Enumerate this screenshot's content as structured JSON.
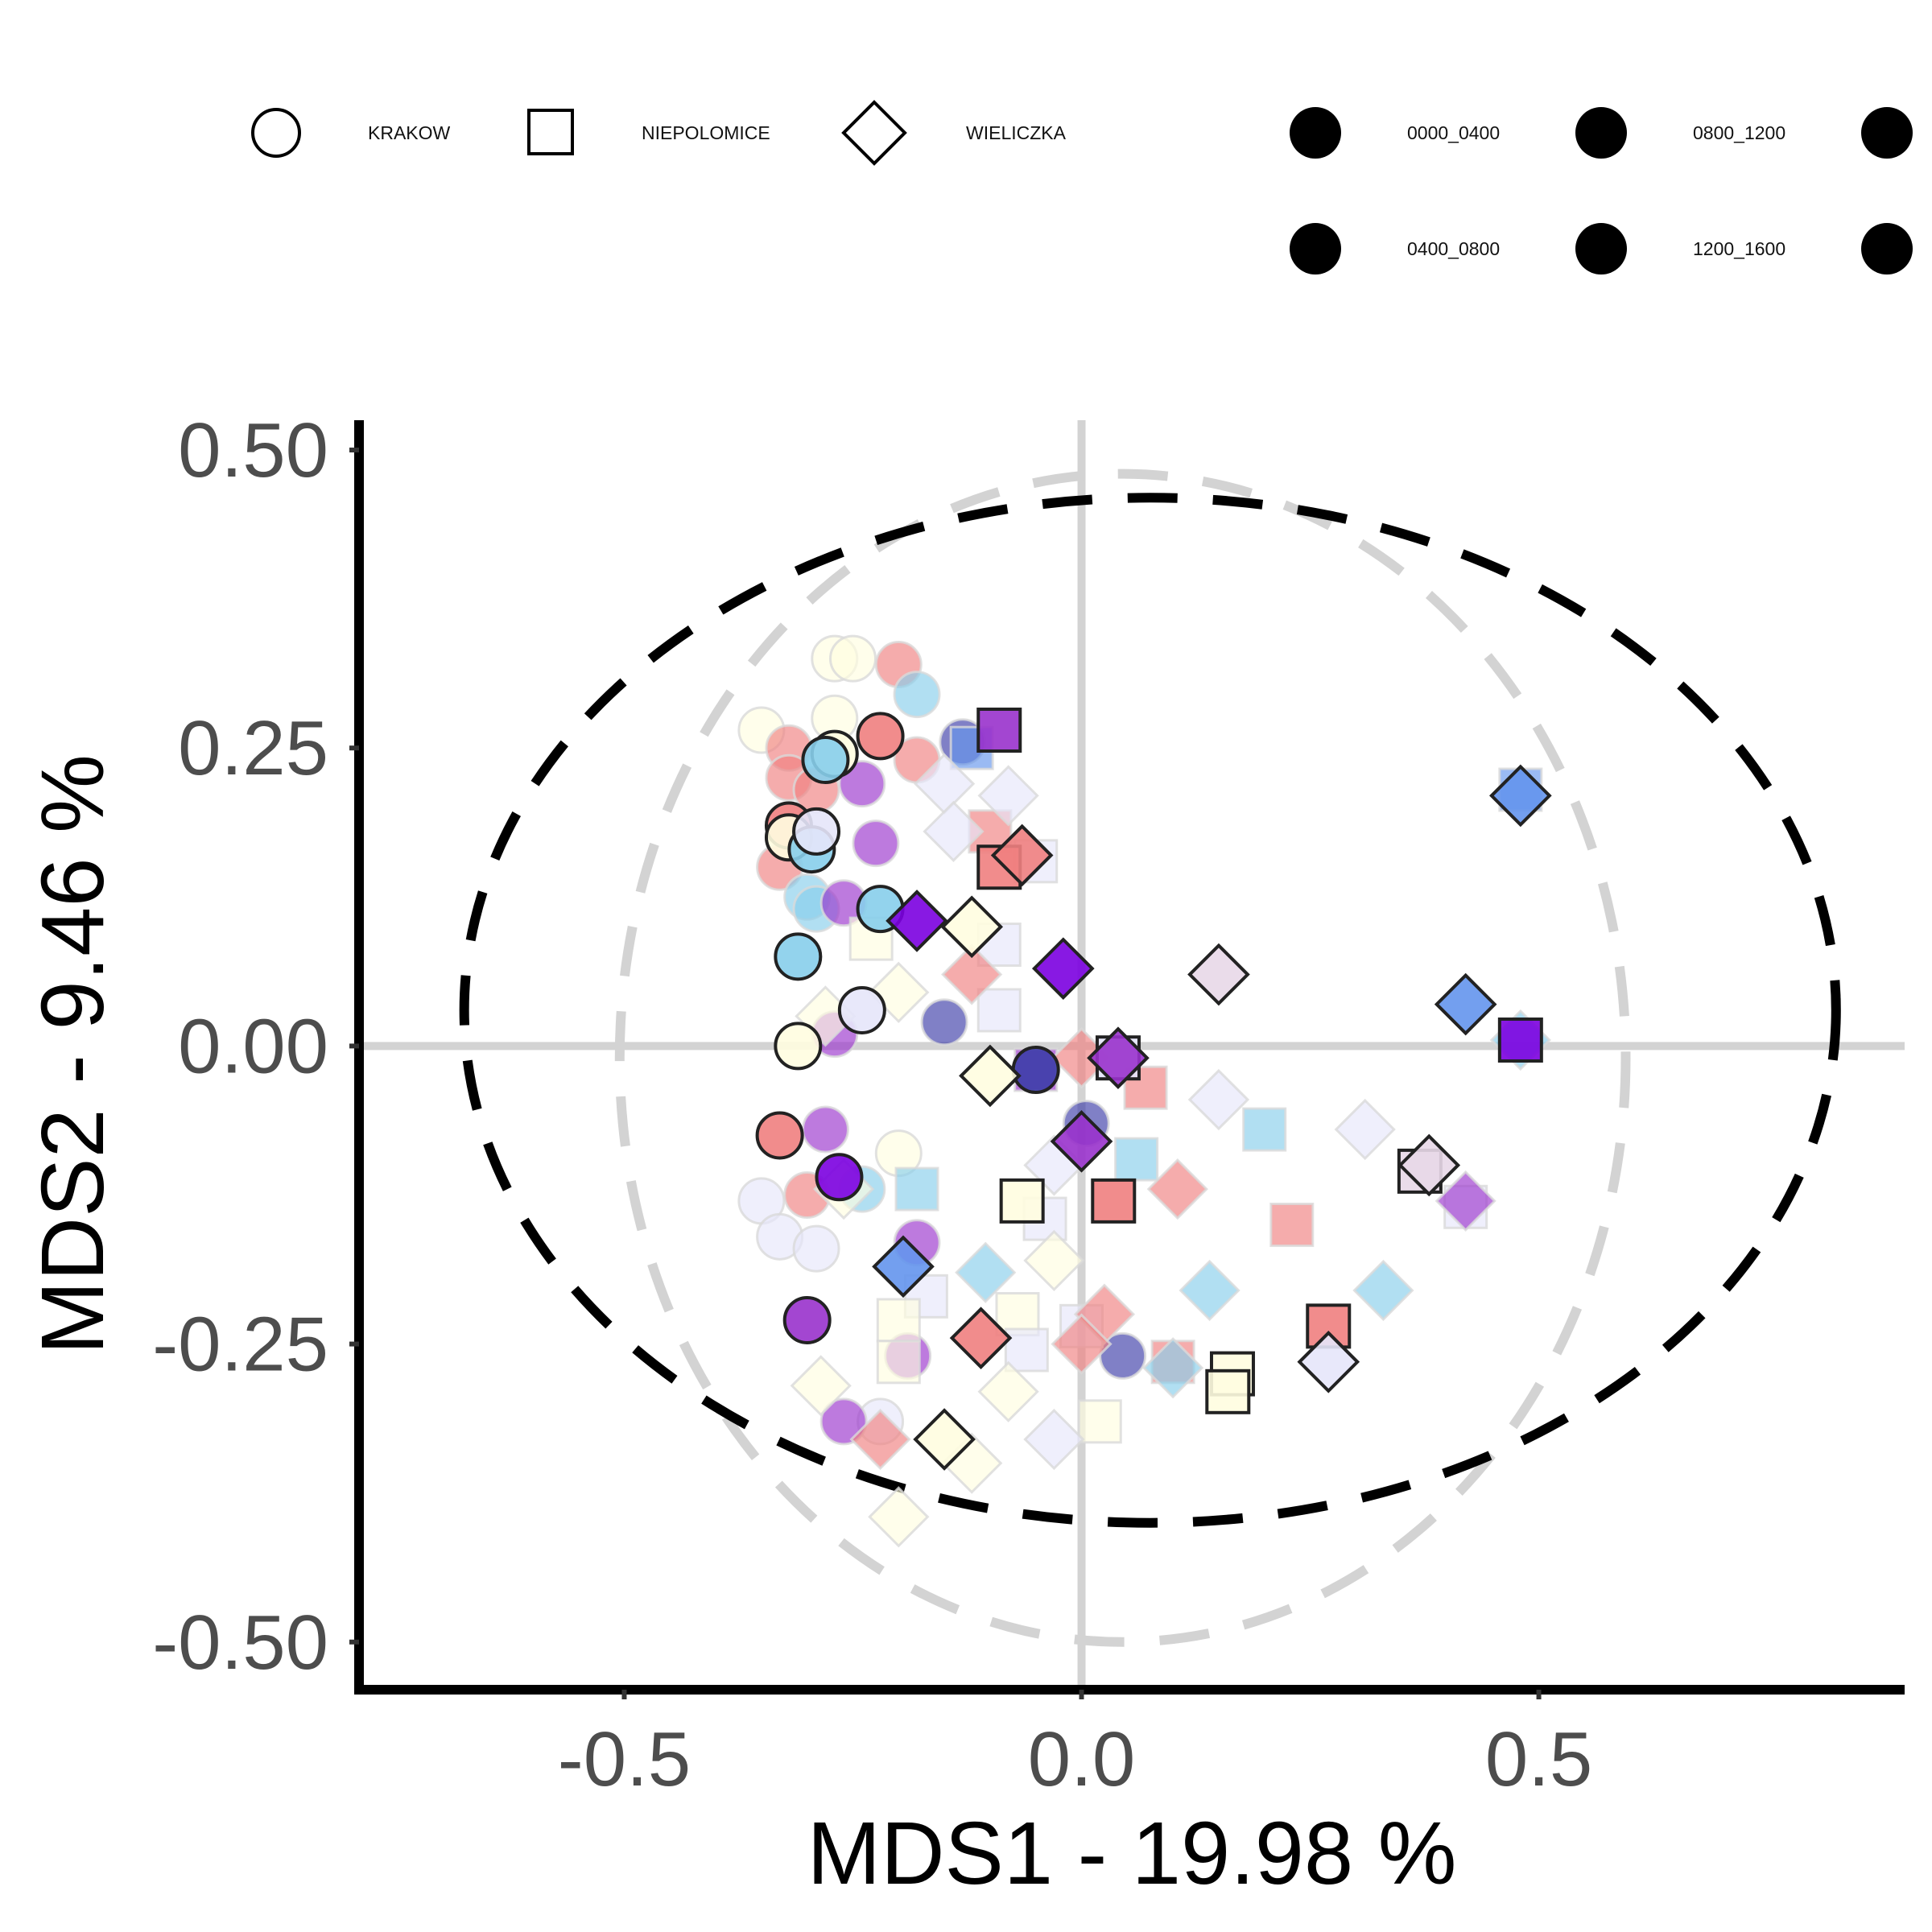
{
  "chart_data": {
    "type": "scatter",
    "xlabel": "MDS1 - 19.98 %",
    "ylabel": "MDS2 - 9.46 %",
    "xlim": [
      -0.79,
      0.9
    ],
    "ylim": [
      -0.54,
      0.525
    ],
    "x_ticks": [
      {
        "value": -0.5,
        "label": "-0.5"
      },
      {
        "value": 0.0,
        "label": "0.0"
      },
      {
        "value": 0.5,
        "label": "0.5"
      }
    ],
    "y_ticks": [
      {
        "value": 0.5,
        "label": "0.50"
      },
      {
        "value": 0.25,
        "label": "0.25"
      },
      {
        "value": 0.0,
        "label": "0.00"
      },
      {
        "value": -0.25,
        "label": "-0.25"
      },
      {
        "value": -0.5,
        "label": "-0.50"
      }
    ],
    "grid": false,
    "reference_lines": {
      "x": 0,
      "y": 0,
      "color": "#d3d3d3"
    },
    "legend_position": "top",
    "legend": {
      "shapes": [
        {
          "label": "KRAKOW",
          "shape": "circle"
        },
        {
          "label": "NIEPOLOMICE",
          "shape": "square"
        },
        {
          "label": "WIELICZKA",
          "shape": "diamond"
        }
      ],
      "times": [
        "0000_0400",
        "0800_1200",
        "",
        "0400_0800",
        "1200_1600",
        ""
      ]
    },
    "colors": {
      "salmon": "#f08080",
      "lightblue": "#87ceeb",
      "purple": "#9932cc",
      "violet": "#7b00e0",
      "navy": "#3c3ca8",
      "cornflower": "#6495ed",
      "cream": "#fffde0",
      "lavender": "#e6e6fa",
      "pinkgrey": "#e8d8e8"
    },
    "ellipses": [
      {
        "name": "",
        "style": "dashed",
        "color": "#d3d3d3",
        "center": [
          0.045,
          -0.01
        ],
        "rx": 0.55,
        "ry": 0.49
      },
      {
        "name": "",
        "style": "dashed",
        "color": "#000000",
        "center": [
          0.075,
          0.03
        ],
        "rx": 0.75,
        "ry": 0.43
      }
    ],
    "points": [
      {
        "x": -0.27,
        "y": 0.325,
        "shape": "circle",
        "color": "cream",
        "highlight": false
      },
      {
        "x": -0.25,
        "y": 0.325,
        "shape": "circle",
        "color": "cream",
        "highlight": false
      },
      {
        "x": -0.2,
        "y": 0.32,
        "shape": "circle",
        "color": "salmon",
        "highlight": false
      },
      {
        "x": -0.18,
        "y": 0.295,
        "shape": "circle",
        "color": "lightblue",
        "highlight": false
      },
      {
        "x": -0.35,
        "y": 0.265,
        "shape": "circle",
        "color": "cream",
        "highlight": false
      },
      {
        "x": -0.27,
        "y": 0.275,
        "shape": "circle",
        "color": "cream",
        "highlight": false
      },
      {
        "x": -0.32,
        "y": 0.25,
        "shape": "circle",
        "color": "salmon",
        "highlight": false
      },
      {
        "x": -0.22,
        "y": 0.26,
        "shape": "circle",
        "color": "salmon",
        "highlight": true
      },
      {
        "x": -0.27,
        "y": 0.245,
        "shape": "circle",
        "color": "cream",
        "highlight": true
      },
      {
        "x": -0.28,
        "y": 0.24,
        "shape": "circle",
        "color": "lightblue",
        "highlight": true
      },
      {
        "x": -0.32,
        "y": 0.225,
        "shape": "circle",
        "color": "salmon",
        "highlight": false
      },
      {
        "x": -0.29,
        "y": 0.215,
        "shape": "circle",
        "color": "salmon",
        "highlight": false
      },
      {
        "x": -0.24,
        "y": 0.22,
        "shape": "circle",
        "color": "purple",
        "highlight": false
      },
      {
        "x": -0.18,
        "y": 0.24,
        "shape": "circle",
        "color": "salmon",
        "highlight": false
      },
      {
        "x": -0.13,
        "y": 0.255,
        "shape": "circle",
        "color": "navy",
        "highlight": false
      },
      {
        "x": -0.32,
        "y": 0.185,
        "shape": "circle",
        "color": "salmon",
        "highlight": true
      },
      {
        "x": -0.32,
        "y": 0.175,
        "shape": "circle",
        "color": "cream",
        "highlight": true
      },
      {
        "x": -0.295,
        "y": 0.165,
        "shape": "circle",
        "color": "lightblue",
        "highlight": true
      },
      {
        "x": -0.29,
        "y": 0.18,
        "shape": "circle",
        "color": "lavender",
        "highlight": true
      },
      {
        "x": -0.225,
        "y": 0.17,
        "shape": "circle",
        "color": "purple",
        "highlight": false
      },
      {
        "x": -0.33,
        "y": 0.15,
        "shape": "circle",
        "color": "salmon",
        "highlight": false
      },
      {
        "x": -0.3,
        "y": 0.125,
        "shape": "circle",
        "color": "lightblue",
        "highlight": false
      },
      {
        "x": -0.29,
        "y": 0.115,
        "shape": "circle",
        "color": "lightblue",
        "highlight": false
      },
      {
        "x": -0.26,
        "y": 0.12,
        "shape": "circle",
        "color": "purple",
        "highlight": false
      },
      {
        "x": -0.22,
        "y": 0.115,
        "shape": "circle",
        "color": "lightblue",
        "highlight": true
      },
      {
        "x": -0.31,
        "y": 0.075,
        "shape": "circle",
        "color": "lightblue",
        "highlight": true
      },
      {
        "x": -0.24,
        "y": 0.03,
        "shape": "circle",
        "color": "lavender",
        "highlight": true
      },
      {
        "x": -0.15,
        "y": 0.02,
        "shape": "circle",
        "color": "navy",
        "highlight": false
      },
      {
        "x": -0.27,
        "y": 0.01,
        "shape": "circle",
        "color": "purple",
        "highlight": false
      },
      {
        "x": -0.31,
        "y": 0.0,
        "shape": "circle",
        "color": "cream",
        "highlight": true
      },
      {
        "x": -0.33,
        "y": -0.075,
        "shape": "circle",
        "color": "salmon",
        "highlight": true
      },
      {
        "x": -0.28,
        "y": -0.07,
        "shape": "circle",
        "color": "purple",
        "highlight": false
      },
      {
        "x": -0.2,
        "y": -0.09,
        "shape": "circle",
        "color": "cream",
        "highlight": false
      },
      {
        "x": -0.265,
        "y": -0.11,
        "shape": "circle",
        "color": "violet",
        "highlight": true
      },
      {
        "x": -0.35,
        "y": -0.13,
        "shape": "circle",
        "color": "lavender",
        "highlight": false
      },
      {
        "x": -0.3,
        "y": -0.125,
        "shape": "circle",
        "color": "salmon",
        "highlight": false
      },
      {
        "x": -0.24,
        "y": -0.12,
        "shape": "circle",
        "color": "lightblue",
        "highlight": false
      },
      {
        "x": -0.33,
        "y": -0.16,
        "shape": "circle",
        "color": "lavender",
        "highlight": false
      },
      {
        "x": -0.29,
        "y": -0.17,
        "shape": "circle",
        "color": "lavender",
        "highlight": false
      },
      {
        "x": -0.18,
        "y": -0.165,
        "shape": "circle",
        "color": "purple",
        "highlight": false
      },
      {
        "x": -0.3,
        "y": -0.23,
        "shape": "circle",
        "color": "purple",
        "highlight": true
      },
      {
        "x": -0.19,
        "y": -0.26,
        "shape": "circle",
        "color": "purple",
        "highlight": false
      },
      {
        "x": -0.22,
        "y": -0.315,
        "shape": "circle",
        "color": "lavender",
        "highlight": false
      },
      {
        "x": -0.26,
        "y": -0.315,
        "shape": "circle",
        "color": "purple",
        "highlight": false
      },
      {
        "x": -0.05,
        "y": -0.02,
        "shape": "circle",
        "color": "navy",
        "highlight": true
      },
      {
        "x": 0.005,
        "y": -0.065,
        "shape": "circle",
        "color": "navy",
        "highlight": false
      },
      {
        "x": 0.045,
        "y": -0.26,
        "shape": "circle",
        "color": "navy",
        "highlight": false
      },
      {
        "x": -0.09,
        "y": 0.265,
        "shape": "square",
        "color": "purple",
        "highlight": true
      },
      {
        "x": -0.12,
        "y": 0.25,
        "shape": "square",
        "color": "cornflower",
        "highlight": false
      },
      {
        "x": -0.1,
        "y": 0.18,
        "shape": "square",
        "color": "salmon",
        "highlight": false
      },
      {
        "x": -0.05,
        "y": 0.155,
        "shape": "square",
        "color": "lavender",
        "highlight": false
      },
      {
        "x": -0.09,
        "y": 0.15,
        "shape": "square",
        "color": "salmon",
        "highlight": true
      },
      {
        "x": -0.23,
        "y": 0.09,
        "shape": "square",
        "color": "cream",
        "highlight": false
      },
      {
        "x": -0.09,
        "y": 0.085,
        "shape": "square",
        "color": "lavender",
        "highlight": false
      },
      {
        "x": -0.09,
        "y": 0.03,
        "shape": "square",
        "color": "lavender",
        "highlight": false
      },
      {
        "x": 0.04,
        "y": -0.01,
        "shape": "square",
        "color": "lavender",
        "highlight": true
      },
      {
        "x": -0.05,
        "y": -0.02,
        "shape": "square",
        "color": "purple",
        "highlight": false
      },
      {
        "x": 0.07,
        "y": -0.035,
        "shape": "square",
        "color": "salmon",
        "highlight": false
      },
      {
        "x": 0.2,
        "y": -0.07,
        "shape": "square",
        "color": "lightblue",
        "highlight": false
      },
      {
        "x": 0.06,
        "y": -0.095,
        "shape": "square",
        "color": "lightblue",
        "highlight": false
      },
      {
        "x": -0.18,
        "y": -0.12,
        "shape": "square",
        "color": "lightblue",
        "highlight": false
      },
      {
        "x": -0.065,
        "y": -0.13,
        "shape": "square",
        "color": "cream",
        "highlight": true
      },
      {
        "x": 0.035,
        "y": -0.13,
        "shape": "square",
        "color": "salmon",
        "highlight": true
      },
      {
        "x": -0.04,
        "y": -0.145,
        "shape": "square",
        "color": "lavender",
        "highlight": false
      },
      {
        "x": 0.23,
        "y": -0.15,
        "shape": "square",
        "color": "salmon",
        "highlight": false
      },
      {
        "x": -0.17,
        "y": -0.21,
        "shape": "square",
        "color": "lavender",
        "highlight": false
      },
      {
        "x": -0.07,
        "y": -0.225,
        "shape": "square",
        "color": "cream",
        "highlight": false
      },
      {
        "x": -0.2,
        "y": -0.23,
        "shape": "square",
        "color": "cream",
        "highlight": false
      },
      {
        "x": 0.0,
        "y": -0.235,
        "shape": "square",
        "color": "lavender",
        "highlight": false
      },
      {
        "x": 0.27,
        "y": -0.235,
        "shape": "square",
        "color": "salmon",
        "highlight": true
      },
      {
        "x": -0.06,
        "y": -0.255,
        "shape": "square",
        "color": "lavender",
        "highlight": false
      },
      {
        "x": -0.2,
        "y": -0.265,
        "shape": "square",
        "color": "cream",
        "highlight": false
      },
      {
        "x": 0.1,
        "y": -0.265,
        "shape": "square",
        "color": "salmon",
        "highlight": false
      },
      {
        "x": 0.165,
        "y": -0.275,
        "shape": "square",
        "color": "cream",
        "highlight": true
      },
      {
        "x": 0.16,
        "y": -0.29,
        "shape": "square",
        "color": "cream",
        "highlight": true
      },
      {
        "x": 0.02,
        "y": -0.315,
        "shape": "square",
        "color": "cream",
        "highlight": false
      },
      {
        "x": 0.48,
        "y": 0.215,
        "shape": "square",
        "color": "cornflower",
        "highlight": false
      },
      {
        "x": 0.48,
        "y": 0.005,
        "shape": "square",
        "color": "violet",
        "highlight": true
      },
      {
        "x": 0.42,
        "y": -0.135,
        "shape": "square",
        "color": "lavender",
        "highlight": false
      },
      {
        "x": 0.37,
        "y": -0.105,
        "shape": "square",
        "color": "pinkgrey",
        "highlight": true
      },
      {
        "x": -0.15,
        "y": 0.22,
        "shape": "diamond",
        "color": "lavender",
        "highlight": false
      },
      {
        "x": -0.08,
        "y": 0.21,
        "shape": "diamond",
        "color": "lavender",
        "highlight": false
      },
      {
        "x": -0.14,
        "y": 0.18,
        "shape": "diamond",
        "color": "lavender",
        "highlight": false
      },
      {
        "x": -0.065,
        "y": 0.16,
        "shape": "diamond",
        "color": "salmon",
        "highlight": true
      },
      {
        "x": -0.18,
        "y": 0.105,
        "shape": "diamond",
        "color": "violet",
        "highlight": true
      },
      {
        "x": -0.12,
        "y": 0.1,
        "shape": "diamond",
        "color": "cream",
        "highlight": true
      },
      {
        "x": -0.02,
        "y": 0.065,
        "shape": "diamond",
        "color": "violet",
        "highlight": true
      },
      {
        "x": 0.15,
        "y": 0.06,
        "shape": "diamond",
        "color": "pinkgrey",
        "highlight": true
      },
      {
        "x": -0.12,
        "y": 0.06,
        "shape": "diamond",
        "color": "salmon",
        "highlight": false
      },
      {
        "x": -0.2,
        "y": 0.045,
        "shape": "diamond",
        "color": "cream",
        "highlight": false
      },
      {
        "x": -0.28,
        "y": 0.025,
        "shape": "diamond",
        "color": "cream",
        "highlight": false
      },
      {
        "x": 0.0,
        "y": -0.01,
        "shape": "diamond",
        "color": "salmon",
        "highlight": false
      },
      {
        "x": 0.04,
        "y": -0.01,
        "shape": "diamond",
        "color": "purple",
        "highlight": true
      },
      {
        "x": -0.1,
        "y": -0.025,
        "shape": "diamond",
        "color": "cream",
        "highlight": true
      },
      {
        "x": 0.15,
        "y": -0.045,
        "shape": "diamond",
        "color": "lavender",
        "highlight": false
      },
      {
        "x": 0.31,
        "y": -0.07,
        "shape": "diamond",
        "color": "lavender",
        "highlight": false
      },
      {
        "x": 0.0,
        "y": -0.08,
        "shape": "diamond",
        "color": "purple",
        "highlight": true
      },
      {
        "x": -0.03,
        "y": -0.1,
        "shape": "diamond",
        "color": "lavender",
        "highlight": false
      },
      {
        "x": 0.105,
        "y": -0.12,
        "shape": "diamond",
        "color": "salmon",
        "highlight": false
      },
      {
        "x": 0.38,
        "y": -0.1,
        "shape": "diamond",
        "color": "pinkgrey",
        "highlight": true
      },
      {
        "x": 0.42,
        "y": -0.13,
        "shape": "diamond",
        "color": "purple",
        "highlight": false
      },
      {
        "x": -0.26,
        "y": -0.12,
        "shape": "diamond",
        "color": "cream",
        "highlight": false
      },
      {
        "x": -0.03,
        "y": -0.18,
        "shape": "diamond",
        "color": "cream",
        "highlight": false
      },
      {
        "x": -0.195,
        "y": -0.185,
        "shape": "diamond",
        "color": "cornflower",
        "highlight": true
      },
      {
        "x": -0.105,
        "y": -0.19,
        "shape": "diamond",
        "color": "lightblue",
        "highlight": false
      },
      {
        "x": 0.14,
        "y": -0.205,
        "shape": "diamond",
        "color": "lightblue",
        "highlight": false
      },
      {
        "x": 0.33,
        "y": -0.205,
        "shape": "diamond",
        "color": "lightblue",
        "highlight": false
      },
      {
        "x": 0.025,
        "y": -0.225,
        "shape": "diamond",
        "color": "salmon",
        "highlight": false
      },
      {
        "x": -0.11,
        "y": -0.245,
        "shape": "diamond",
        "color": "salmon",
        "highlight": true
      },
      {
        "x": 0.0,
        "y": -0.25,
        "shape": "diamond",
        "color": "salmon",
        "highlight": false
      },
      {
        "x": 0.1,
        "y": -0.27,
        "shape": "diamond",
        "color": "lightblue",
        "highlight": false
      },
      {
        "x": 0.27,
        "y": -0.265,
        "shape": "diamond",
        "color": "lavender",
        "highlight": true
      },
      {
        "x": -0.285,
        "y": -0.285,
        "shape": "diamond",
        "color": "cream",
        "highlight": false
      },
      {
        "x": -0.08,
        "y": -0.29,
        "shape": "diamond",
        "color": "cream",
        "highlight": false
      },
      {
        "x": -0.03,
        "y": -0.33,
        "shape": "diamond",
        "color": "lavender",
        "highlight": false
      },
      {
        "x": -0.15,
        "y": -0.33,
        "shape": "diamond",
        "color": "cream",
        "highlight": true
      },
      {
        "x": -0.22,
        "y": -0.33,
        "shape": "diamond",
        "color": "salmon",
        "highlight": false
      },
      {
        "x": -0.12,
        "y": -0.35,
        "shape": "diamond",
        "color": "cream",
        "highlight": false
      },
      {
        "x": -0.2,
        "y": -0.395,
        "shape": "diamond",
        "color": "cream",
        "highlight": false
      },
      {
        "x": 0.48,
        "y": 0.21,
        "shape": "diamond",
        "color": "cornflower",
        "highlight": true
      },
      {
        "x": 0.42,
        "y": 0.035,
        "shape": "diamond",
        "color": "cornflower",
        "highlight": true
      },
      {
        "x": 0.48,
        "y": 0.005,
        "shape": "diamond",
        "color": "lightblue",
        "highlight": false
      }
    ]
  }
}
